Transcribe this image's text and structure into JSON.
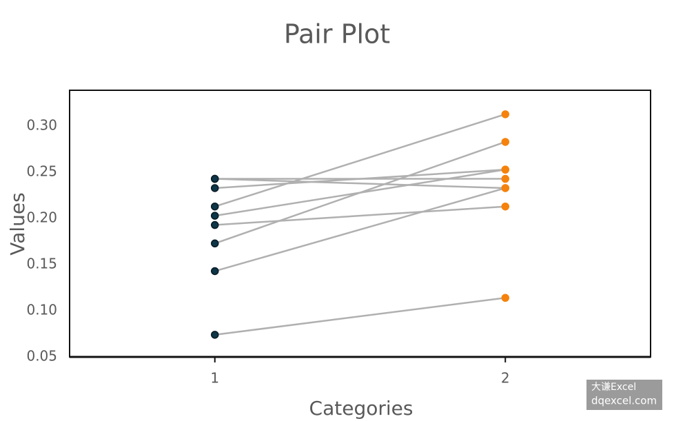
{
  "chart_data": {
    "type": "pair",
    "title": "Pair Plot",
    "x_label": "Categories",
    "y_label": "Values",
    "line_color": "#b0b0b0",
    "series": [
      {
        "x": 1,
        "color": "#0e3548",
        "values": [
          0.213,
          0.173,
          0.243,
          0.243,
          0.233,
          0.203,
          0.193,
          0.143,
          0.074
        ]
      },
      {
        "x": 2,
        "color": "#f5820d",
        "values": [
          0.313,
          0.283,
          0.243,
          0.233,
          0.253,
          0.253,
          0.213,
          0.233,
          0.114
        ]
      }
    ],
    "xlim": [
      0.5,
      2.5
    ],
    "xticks": [
      1,
      2
    ],
    "ylim": [
      0.05,
      0.339
    ],
    "yticks": [
      0.05,
      {
        "value": 0.1,
        "label": "0.10"
      },
      0.15,
      {
        "value": 0.2,
        "label": "0.20"
      },
      0.25,
      {
        "value": 0.3,
        "label": "0.30"
      }
    ],
    "watermark": [
      "大谦Excel",
      "dqexcel.com"
    ]
  }
}
